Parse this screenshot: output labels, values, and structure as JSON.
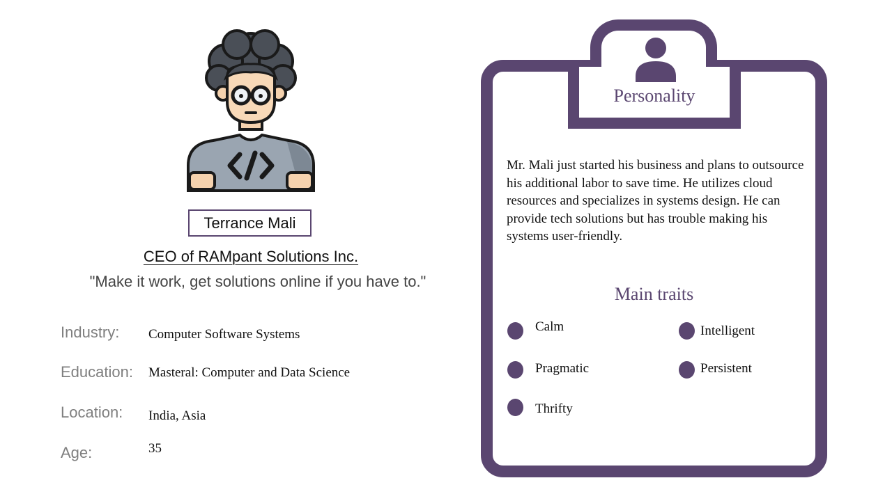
{
  "profile": {
    "name": "Terrance Mali",
    "role": "CEO of RAMpant Solutions Inc.",
    "quote": "\"Make it work, get solutions online if you have to.\"",
    "avatar_icon": "developer-avatar-icon"
  },
  "info": {
    "industry": {
      "label": "Industry:",
      "value": "Computer Software Systems"
    },
    "education": {
      "label": "Education:",
      "value": "Masteral: Computer and Data Science"
    },
    "location": {
      "label": "Location:",
      "value": "India, Asia"
    },
    "age": {
      "label": "Age:",
      "value": "35"
    }
  },
  "personality": {
    "title": "Personality",
    "icon": "person-icon",
    "description": "Mr. Mali just started his business and plans to outsource his additional labor to save time. He utilizes cloud resources and specializes in systems design. He can provide tech solutions but has trouble making his systems user-friendly.",
    "traits_title": "Main traits",
    "traits": [
      "Calm",
      "Intelligent",
      "Pragmatic",
      "Persistent",
      "Thrifty"
    ]
  },
  "colors": {
    "accent": "#5a4670",
    "label_gray": "#7f7f7f",
    "text": "#111111"
  }
}
